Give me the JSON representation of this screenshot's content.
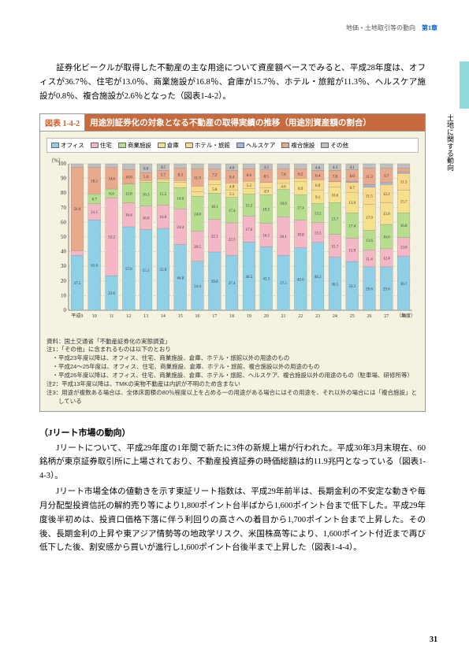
{
  "header": {
    "breadcrumb": "地価・土地取引等の動向",
    "chapter": "第1章"
  },
  "sideTab": "土地に関する動向",
  "intro": "　証券化ビークルが取得した不動産の主な用途について資産額ベースでみると、平成28年度は、オフィスが36.7％、住宅が13.0％、商業施設が16.8％、倉庫が15.7％、ホテル・旅館が11.3％、ヘルスケア施設が0.8％、複合施設が2.6％となった（図表1-4-2）。",
  "chart": {
    "num": "図表 1-4-2",
    "title": "用途別証券化の対象となる不動産の取得実績の推移（用途別資産額の割合）",
    "unit": "（%）",
    "type": "stacked-bar",
    "background_color": "#f5f2df",
    "grid_color": "#888888",
    "ylim": [
      0,
      100
    ],
    "ytick_step": 10,
    "axis_fontsize": 7,
    "legend": [
      {
        "label": "オフィス",
        "color": "#8fd0e6"
      },
      {
        "label": "住宅",
        "color": "#f4b7c5"
      },
      {
        "label": "商業施設",
        "color": "#b7de8f"
      },
      {
        "label": "倉庫",
        "color": "#f7e08c"
      },
      {
        "label": "ホテル・旅館",
        "color": "#f9d98b"
      },
      {
        "label": "ヘルスケア",
        "color": "#9fb7e0"
      },
      {
        "label": "複合施設",
        "color": "#e8a98c"
      },
      {
        "label": "その他",
        "color": "#c0c0c0"
      }
    ],
    "years": [
      "平成9",
      "10",
      "11",
      "12",
      "13",
      "14",
      "15",
      "16",
      "17",
      "18",
      "19",
      "20",
      "21",
      "22",
      "23",
      "24",
      "25",
      "26",
      "27",
      "28"
    ],
    "x_suffix": "（年度）",
    "data": [
      [
        37.5,
        3.3,
        0,
        0,
        0,
        0,
        56.9,
        2.3
      ],
      [
        61.6,
        11.1,
        6.7,
        0,
        0,
        0,
        18.1,
        2.5
      ],
      [
        23.6,
        53.2,
        6.0,
        0,
        0,
        0,
        14.6,
        2.6
      ],
      [
        57.0,
        16.4,
        12.8,
        0,
        0,
        0,
        10.0,
        3.8
      ],
      [
        55.1,
        16.0,
        16.3,
        1.2,
        0,
        0,
        5.4,
        6.0
      ],
      [
        55.9,
        16.0,
        15.5,
        1.7,
        0.7,
        0,
        5.7,
        4.5
      ],
      [
        44.8,
        24.4,
        14.6,
        3.5,
        1.3,
        0,
        8.3,
        3.1
      ],
      [
        33.4,
        20.5,
        24.0,
        3.2,
        3.6,
        0,
        11.9,
        3.4
      ],
      [
        39.8,
        22.1,
        18.1,
        5.8,
        3.3,
        0,
        7.2,
        3.7
      ],
      [
        37.4,
        22.3,
        17.4,
        5.1,
        4.8,
        0,
        8.4,
        4.6
      ],
      [
        46.5,
        17.6,
        15.2,
        3.6,
        5.2,
        0,
        8.6,
        3.3
      ],
      [
        43.3,
        16.1,
        19.5,
        4.9,
        3.5,
        0,
        8.5,
        4.2
      ],
      [
        37.5,
        26.1,
        19.0,
        4.0,
        3.0,
        0,
        7.0,
        3.4
      ],
      [
        42.6,
        18.8,
        17.4,
        8.9,
        2.4,
        0,
        6.2,
        3.7
      ],
      [
        46.3,
        13.5,
        13.2,
        9.1,
        6.9,
        0,
        6.4,
        4.6
      ],
      [
        36.1,
        15.7,
        21.7,
        10.6,
        3.6,
        0.1,
        7.8,
        4.4
      ],
      [
        33.3,
        15.9,
        17.4,
        13.9,
        6.7,
        0.7,
        8.0,
        4.1
      ],
      [
        29.6,
        11.4,
        13.6,
        17.9,
        11.5,
        1.7,
        11.3,
        3.0
      ],
      [
        29.6,
        12.4,
        16.6,
        15.0,
        12.2,
        1.4,
        9.7,
        3.1
      ],
      [
        36.7,
        13.0,
        16.8,
        15.7,
        11.3,
        0.8,
        2.6,
        3.1
      ]
    ],
    "notes": [
      "資料：国土交通省「不動産証券化の実態調査」",
      "注1：「その他」に含まれるものは以下のとおり",
      "　・平成23年度以降は、オフィス、住宅、商業施設、倉庫、ホテル・旅館以外の用途のもの",
      "　・平成24～25年度は、オフィス、住宅、商業施設、倉庫、ホテル・旅館、複合施設以外の用途のもの",
      "　・平成26年度以降は、オフィス、住宅、商業施設、倉庫、ホテル・旅館、ヘルスケア、複合施設以外の用途のもの（駐車場、研修所等）",
      "注2：平成13年度以降は、TMKの実物不動産は内訳が不明のため含まない",
      "注3：用途が複数ある場合は、全体床面積の80％程度以上を占める一の用途がある場合にはその用途を、それ以外の場合には「複合施設」としている"
    ]
  },
  "section2": {
    "heading": "（Jリート市場の動向）",
    "p1": "　Jリートについて、平成29年度の1年間で新たに3件の新規上場が行われた。平成30年3月末現在、60銘柄が東京証券取引所に上場されており、不動産投資証券の時価総額は約11.9兆円となっている（図表1-4-3）。",
    "p2": "　Jリート市場全体の値動きを示す東証リート指数は、平成29年前半は、長期金利の不安定な動きや毎月分配型投資信託の解約売り等により1,800ポイント台半ばから1,600ポイント台まで低下した。平成29年度後半初めは、投資口価格下落に伴う利回りの高さへの着目から1,700ポイント台まで上昇した。その後、長期金利の上昇や東アジア情勢等の地政学リスク、米国株高等により、1,600ポイント付近まで再び低下した後、割安感から買いが進行し1,600ポイント台後半まで上昇した（図表1-4-4）。"
  },
  "pageNumber": "31"
}
